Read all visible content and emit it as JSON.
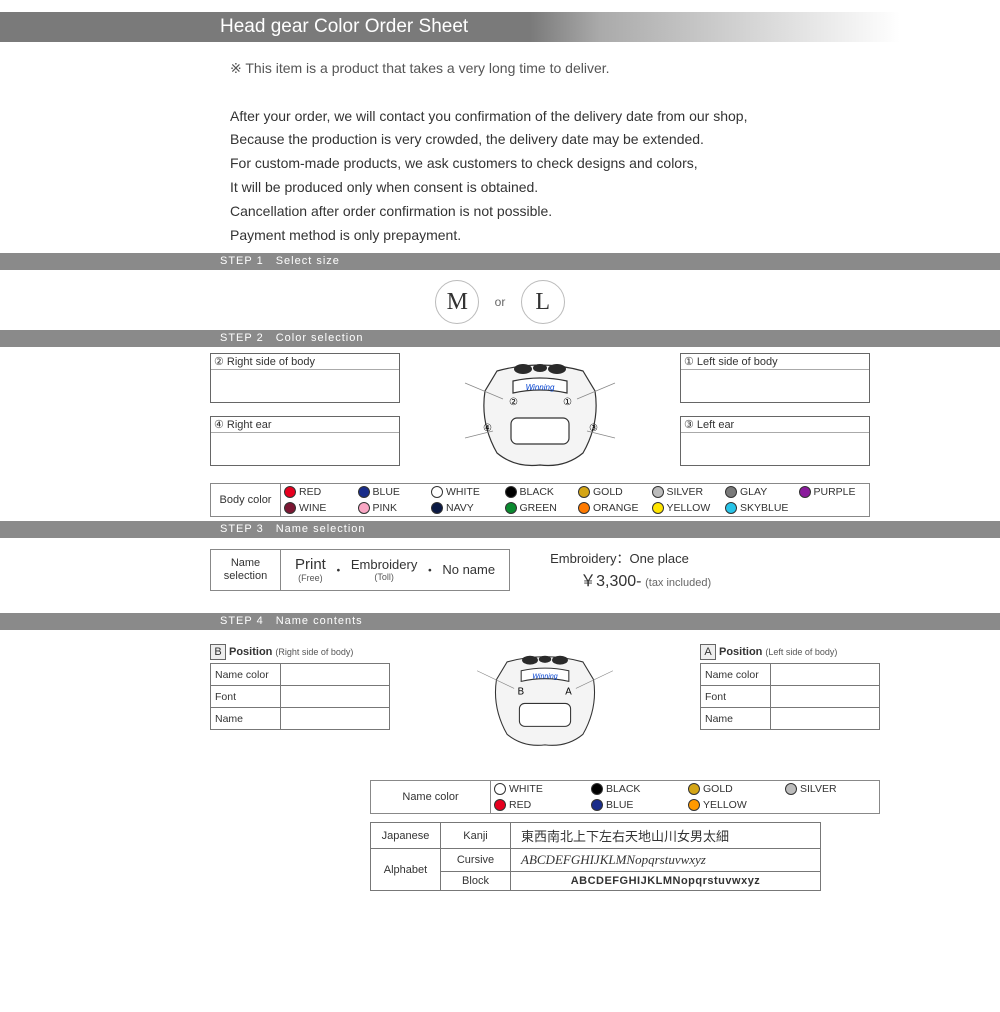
{
  "header": {
    "title": "Head gear Color Order Sheet"
  },
  "intro": {
    "notice": "※ This item is a product that takes a very long time to deliver.",
    "lines": [
      "After your order, we will contact you confirmation of the delivery date from our shop,",
      "Because the production is very crowded, the delivery date may be extended.",
      "For custom-made products, we ask customers to check designs and colors,",
      "It will be produced only when consent is obtained.",
      "Cancellation after order confirmation is not possible.",
      "Payment method is only prepayment."
    ]
  },
  "steps": {
    "s1": {
      "label": "STEP 1　Select size",
      "sizes": [
        "M",
        "L"
      ],
      "or": "or"
    },
    "s2": {
      "label": "STEP 2　Color selection",
      "fields": {
        "f1": "① Left side of body",
        "f2": "② Right side of body",
        "f3": "③ Left ear",
        "f4": "④ Right ear"
      },
      "brand": "Winning",
      "markers": {
        "m1": "①",
        "m2": "②",
        "m3": "③",
        "m4": "④"
      },
      "colorLabel": "Body color",
      "colors": [
        {
          "name": "RED",
          "hex": "#e6001f"
        },
        {
          "name": "BLUE",
          "hex": "#1a2d8a"
        },
        {
          "name": "WHITE",
          "hex": "#ffffff"
        },
        {
          "name": "BLACK",
          "hex": "#000000"
        },
        {
          "name": "GOLD",
          "hex": "#d4a516"
        },
        {
          "name": "SILVER",
          "hex": "#bcbcbc"
        },
        {
          "name": "GLAY",
          "hex": "#7a7a7a"
        },
        {
          "name": "PURPLE",
          "hex": "#8a1b9c"
        },
        {
          "name": "WINE",
          "hex": "#7b1733"
        },
        {
          "name": "PINK",
          "hex": "#f9a7c4"
        },
        {
          "name": "NAVY",
          "hex": "#0a1944"
        },
        {
          "name": "GREEN",
          "hex": "#0a8a2f"
        },
        {
          "name": "ORANGE",
          "hex": "#ff7a00"
        },
        {
          "name": "YELLOW",
          "hex": "#ffe500"
        },
        {
          "name": "SKYBLUE",
          "hex": "#27c4e8"
        }
      ]
    },
    "s3": {
      "label": "STEP 3　Name selection",
      "boxLabel": "Name\nselection",
      "opts": [
        {
          "t": "Print",
          "s": "(Free)"
        },
        {
          "t": "Embroidery",
          "s": "(Toll)"
        },
        {
          "t": "No name",
          "s": ""
        }
      ],
      "dot": "・",
      "priceTitle": "Embroidery：One place",
      "price": "￥3,300-",
      "priceNote": "(tax included)"
    },
    "s4": {
      "label": "STEP 4　Name contents",
      "posA": {
        "badge": "A",
        "title": "Position",
        "sub": "(Left side of body)"
      },
      "posB": {
        "badge": "B",
        "title": "Position",
        "sub": "(Right side of body)"
      },
      "rows": [
        "Name color",
        "Font",
        "Name"
      ],
      "markers": {
        "a": "A",
        "b": "B"
      },
      "nameColorLabel": "Name color",
      "nameColors": [
        {
          "name": "WHITE",
          "hex": "#ffffff"
        },
        {
          "name": "BLACK",
          "hex": "#000000"
        },
        {
          "name": "GOLD",
          "hex": "#d4a516"
        },
        {
          "name": "SILVER",
          "hex": "#bcbcbc"
        },
        {
          "name": "RED",
          "hex": "#e6001f"
        },
        {
          "name": "BLUE",
          "hex": "#1a2d8a"
        },
        {
          "name": "YELLOW",
          "hex": "#ff9900"
        }
      ],
      "fonts": {
        "japanese": {
          "lang": "Japanese",
          "style": "Kanji",
          "sample": "東西南北上下左右天地山川女男太細"
        },
        "cursive": {
          "lang": "Alphabet",
          "style": "Cursive",
          "sample": "ABCDEFGHIJKLMNopqrstuvwxyz"
        },
        "block": {
          "style": "Block",
          "sample": "ABCDEFGHIJKLMNopqrstuvwxyz"
        }
      }
    }
  }
}
